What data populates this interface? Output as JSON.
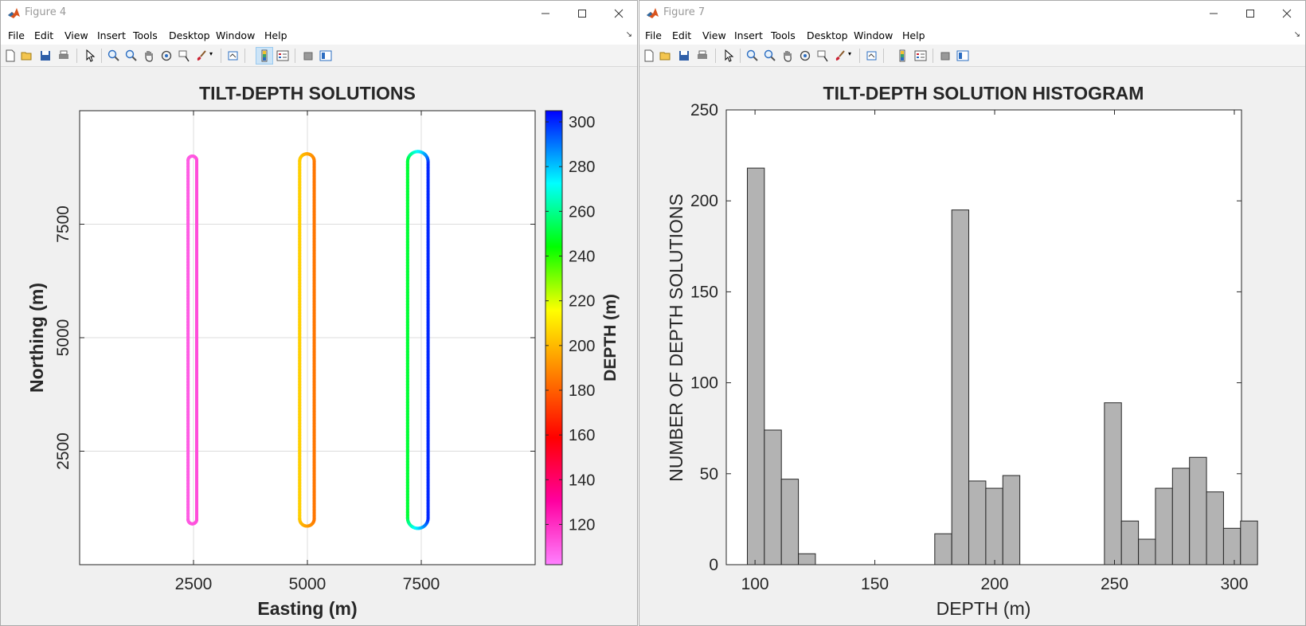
{
  "left_window": {
    "title": "Figure 4",
    "menu": [
      "File",
      "Edit",
      "View",
      "Insert",
      "Tools",
      "Desktop",
      "Window",
      "Help"
    ],
    "chart_data": {
      "type": "scatter",
      "title": "TILT-DEPTH SOLUTIONS",
      "xlabel": "Easting (m)",
      "ylabel": "Northing (m)",
      "xlim": [
        0,
        10000
      ],
      "ylim": [
        0,
        10000
      ],
      "xticks": [
        2500,
        5000,
        7500
      ],
      "yticks": [
        2500,
        5000,
        7500
      ],
      "grid": true,
      "colorbar": {
        "label": "DEPTH (m)",
        "range": [
          102,
          305
        ],
        "ticks": [
          120,
          140,
          160,
          180,
          200,
          220,
          240,
          260,
          280,
          300
        ],
        "colormap": "hsv"
      },
      "loops": [
        {
          "x_left": 2380,
          "x_right": 2570,
          "y_bottom": 900,
          "y_top": 9000,
          "depth_left": 110,
          "depth_right": 113
        },
        {
          "x_left": 4830,
          "x_right": 5150,
          "y_bottom": 850,
          "y_top": 9050,
          "depth_left": 205,
          "depth_right": 185
        },
        {
          "x_left": 7200,
          "x_right": 7650,
          "y_bottom": 800,
          "y_top": 9100,
          "depth_left": 250,
          "depth_right": 300
        }
      ]
    }
  },
  "right_window": {
    "title": "Figure 7",
    "menu": [
      "File",
      "Edit",
      "View",
      "Insert",
      "Tools",
      "Desktop",
      "Window",
      "Help"
    ],
    "chart_data": {
      "type": "bar",
      "title": "TILT-DEPTH SOLUTION HISTOGRAM",
      "xlabel": "DEPTH (m)",
      "ylabel": "NUMBER OF DEPTH SOLUTIONS",
      "xlim": [
        88,
        303
      ],
      "ylim": [
        0,
        250
      ],
      "xticks": [
        100,
        150,
        200,
        250,
        300
      ],
      "yticks": [
        0,
        50,
        100,
        150,
        200,
        250
      ],
      "bin_width": 7.1,
      "bins": [
        {
          "start": 96.8,
          "count": 218
        },
        {
          "start": 103.9,
          "count": 74
        },
        {
          "start": 111.0,
          "count": 47
        },
        {
          "start": 118.1,
          "count": 6
        },
        {
          "start": 175.0,
          "count": 17
        },
        {
          "start": 182.1,
          "count": 195
        },
        {
          "start": 189.2,
          "count": 46
        },
        {
          "start": 196.3,
          "count": 42
        },
        {
          "start": 203.4,
          "count": 49
        },
        {
          "start": 245.8,
          "count": 89
        },
        {
          "start": 252.9,
          "count": 24
        },
        {
          "start": 260.0,
          "count": 14
        },
        {
          "start": 267.1,
          "count": 42
        },
        {
          "start": 274.2,
          "count": 53
        },
        {
          "start": 281.3,
          "count": 59
        },
        {
          "start": 288.4,
          "count": 40
        },
        {
          "start": 295.5,
          "count": 20
        },
        {
          "start": 302.6,
          "count": 24
        }
      ]
    }
  }
}
